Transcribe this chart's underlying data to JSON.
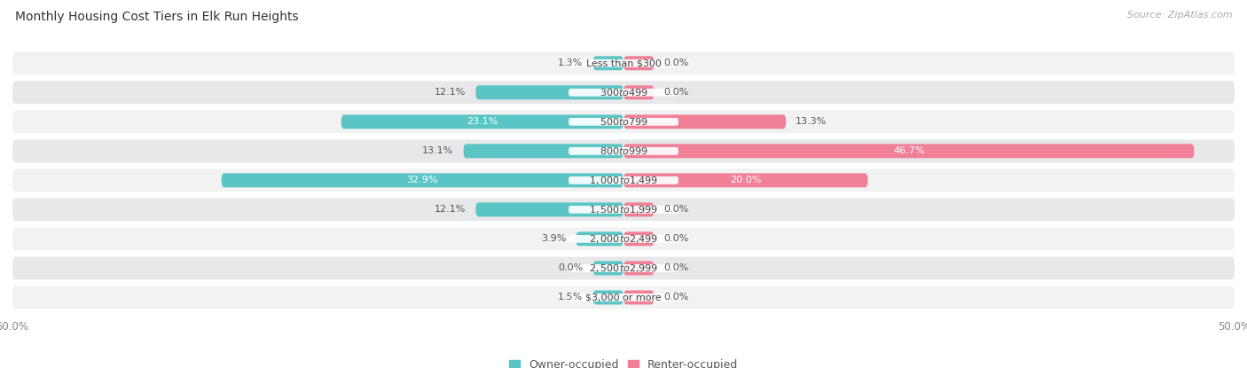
{
  "title": "Monthly Housing Cost Tiers in Elk Run Heights",
  "source": "Source: ZipAtlas.com",
  "categories": [
    "Less than $300",
    "$300 to $499",
    "$500 to $799",
    "$800 to $999",
    "$1,000 to $1,499",
    "$1,500 to $1,999",
    "$2,000 to $2,499",
    "$2,500 to $2,999",
    "$3,000 or more"
  ],
  "owner_values": [
    1.3,
    12.1,
    23.1,
    13.1,
    32.9,
    12.1,
    3.9,
    0.0,
    1.5
  ],
  "renter_values": [
    0.0,
    0.0,
    13.3,
    46.7,
    20.0,
    0.0,
    0.0,
    0.0,
    0.0
  ],
  "owner_color": "#5BC5C5",
  "renter_color": "#F08098",
  "owner_color_light": "#7DD4D4",
  "renter_color_light": "#F4A0B0",
  "row_bg_even": "#F2F2F2",
  "row_bg_odd": "#E8E8EA",
  "max_val": 50.0,
  "title_fontsize": 10,
  "source_fontsize": 8,
  "label_fontsize": 8,
  "category_fontsize": 8,
  "legend_fontsize": 9,
  "background_color": "#FFFFFF",
  "stub_size": 2.5
}
